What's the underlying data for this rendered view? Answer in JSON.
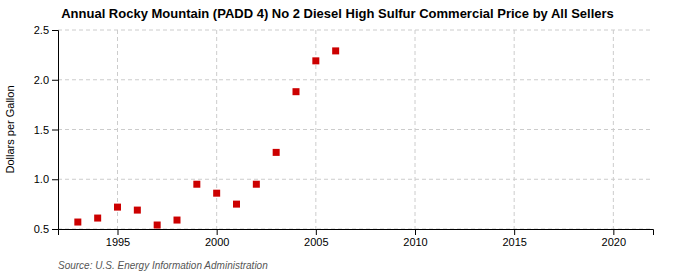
{
  "chart_data": {
    "type": "scatter",
    "title": "Annual Rocky Mountain (PADD 4) No 2 Diesel High Sulfur Commercial Price by All Sellers",
    "ylabel": "Dollars per Gallon",
    "source": "Source: U.S. Energy Information Administration",
    "x": [
      1993,
      1994,
      1995,
      1996,
      1997,
      1998,
      1999,
      2000,
      2001,
      2002,
      2003,
      2004,
      2005,
      2006
    ],
    "values": [
      0.57,
      0.61,
      0.72,
      0.69,
      0.54,
      0.59,
      0.95,
      0.86,
      0.75,
      0.95,
      1.27,
      1.88,
      2.19,
      2.29
    ],
    "color": "#cc0000",
    "marker": "square",
    "xlim": [
      1992,
      2022
    ],
    "xticks": [
      1995,
      2000,
      2005,
      2010,
      2015,
      2020
    ],
    "ylim": [
      0.5,
      2.5
    ],
    "yticks": [
      0.5,
      {
        "value": 1.0,
        "label": "1.0"
      },
      {
        "value": 1.5,
        "label": "1.5"
      },
      {
        "value": 2.0,
        "label": "2.0"
      },
      {
        "value": 2.5,
        "label": "2.5"
      }
    ],
    "grid": true
  }
}
